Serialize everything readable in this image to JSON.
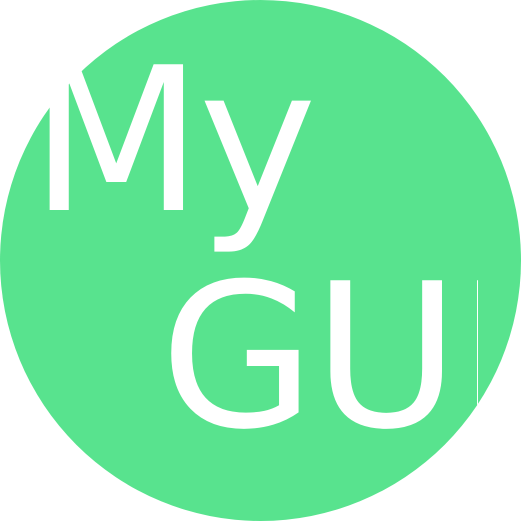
{
  "logo": {
    "line1": "My",
    "line2": "GUI",
    "colors": {
      "circle": "#58e38e",
      "text": "#ffffff",
      "background": "#ffffff"
    }
  }
}
